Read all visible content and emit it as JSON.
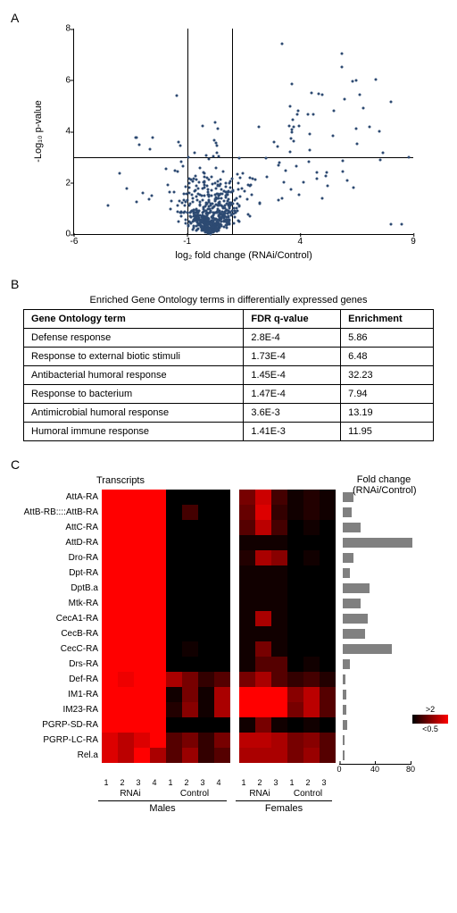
{
  "panelA": {
    "label": "A",
    "ylabel": "-Log₁₀ p-value",
    "xlabel": "log₂ fold change (RNAi/Control)",
    "xlim": [
      -6,
      9
    ],
    "ylim": [
      0,
      8
    ],
    "xticks": [
      -6,
      -1,
      4,
      9
    ],
    "yticks": [
      0,
      2,
      4,
      6,
      8
    ],
    "vlines": [
      -1,
      1
    ],
    "hline": 3,
    "point_color": "#2d4a72"
  },
  "panelB": {
    "label": "B",
    "title": "Enriched Gene Ontology terms in differentially expressed genes",
    "columns": [
      "Gene Ontology  term",
      "FDR q-value",
      "Enrichment"
    ],
    "rows": [
      [
        "Defense response",
        "2.8E-4",
        "5.86"
      ],
      [
        "Response to external biotic stimuli",
        "1.73E-4",
        "6.48"
      ],
      [
        "Antibacterial humoral response",
        "1.45E-4",
        "32.23"
      ],
      [
        "Response to bacterium",
        "1.47E-4",
        "7.94"
      ],
      [
        "Antimicrobial humoral response",
        "3.6E-3",
        "13.19"
      ],
      [
        "Humoral immune response",
        "1.41E-3",
        "11.95"
      ]
    ]
  },
  "panelC": {
    "label": "C",
    "header_left": "Transcripts",
    "header_right": "Fold change\n(RNAi/Control)",
    "colormap_high": ">2",
    "colormap_low": "<0.5",
    "color_low": "#000000",
    "color_high": "#ff0000",
    "male_rnai_n": 4,
    "male_ctrl_n": 4,
    "female_rnai_n": 3,
    "female_ctrl_n": 3,
    "group_labels": [
      "RNAi",
      "Control",
      "RNAi",
      "Control"
    ],
    "sex_labels": [
      "Males",
      "Females"
    ],
    "bar_ticks": [
      0,
      40,
      80
    ],
    "bar_max": 80,
    "rows": [
      {
        "label": "AttA-RA",
        "m_rnai": [
          2,
          2,
          2,
          2
        ],
        "m_ctrl": [
          0.5,
          0.5,
          0.5,
          0.5
        ],
        "f_rnai": [
          1.2,
          1.7,
          0.9
        ],
        "f_ctrl": [
          0.6,
          0.7,
          0.6
        ],
        "fc": 12
      },
      {
        "label": "AttB-RB::::AttB-RA",
        "m_rnai": [
          2,
          2,
          2,
          2
        ],
        "m_ctrl": [
          0.5,
          0.9,
          0.5,
          0.5
        ],
        "f_rnai": [
          1.1,
          1.8,
          0.8
        ],
        "f_ctrl": [
          0.6,
          0.7,
          0.6
        ],
        "fc": 10
      },
      {
        "label": "AttC-RA",
        "m_rnai": [
          2,
          2,
          2,
          2
        ],
        "m_ctrl": [
          0.5,
          0.5,
          0.5,
          0.5
        ],
        "f_rnai": [
          1.0,
          1.6,
          0.9
        ],
        "f_ctrl": [
          0.5,
          0.6,
          0.5
        ],
        "fc": 20
      },
      {
        "label": "AttD-RA",
        "m_rnai": [
          2,
          2,
          2,
          2
        ],
        "m_ctrl": [
          0.5,
          0.5,
          0.5,
          0.5
        ],
        "f_rnai": [
          0.6,
          0.6,
          0.6
        ],
        "f_ctrl": [
          0.5,
          0.5,
          0.5
        ],
        "fc": 78
      },
      {
        "label": "Dro-RA",
        "m_rnai": [
          2,
          2,
          2,
          2
        ],
        "m_ctrl": [
          0.5,
          0.5,
          0.5,
          0.5
        ],
        "f_rnai": [
          0.7,
          1.5,
          1.3
        ],
        "f_ctrl": [
          0.5,
          0.6,
          0.5
        ],
        "fc": 12
      },
      {
        "label": "Dpt-RA",
        "m_rnai": [
          2,
          2,
          2,
          2
        ],
        "m_ctrl": [
          0.5,
          0.5,
          0.5,
          0.5
        ],
        "f_rnai": [
          0.6,
          0.6,
          0.6
        ],
        "f_ctrl": [
          0.5,
          0.5,
          0.5
        ],
        "fc": 8
      },
      {
        "label": "DptB.a",
        "m_rnai": [
          2,
          2,
          2,
          2
        ],
        "m_ctrl": [
          0.5,
          0.5,
          0.5,
          0.5
        ],
        "f_rnai": [
          0.6,
          0.6,
          0.6
        ],
        "f_ctrl": [
          0.5,
          0.5,
          0.5
        ],
        "fc": 30
      },
      {
        "label": "Mtk-RA",
        "m_rnai": [
          2,
          2,
          2,
          2
        ],
        "m_ctrl": [
          0.5,
          0.5,
          0.5,
          0.5
        ],
        "f_rnai": [
          0.6,
          0.6,
          0.6
        ],
        "f_ctrl": [
          0.5,
          0.5,
          0.5
        ],
        "fc": 20
      },
      {
        "label": "CecA1-RA",
        "m_rnai": [
          2,
          2,
          2,
          2
        ],
        "m_ctrl": [
          0.5,
          0.5,
          0.5,
          0.5
        ],
        "f_rnai": [
          0.6,
          1.5,
          0.6
        ],
        "f_ctrl": [
          0.5,
          0.5,
          0.5
        ],
        "fc": 28
      },
      {
        "label": "CecB-RA",
        "m_rnai": [
          2,
          2,
          2,
          2
        ],
        "m_ctrl": [
          0.5,
          0.5,
          0.5,
          0.5
        ],
        "f_rnai": [
          0.6,
          0.6,
          0.6
        ],
        "f_ctrl": [
          0.5,
          0.5,
          0.5
        ],
        "fc": 25
      },
      {
        "label": "CecC-RA",
        "m_rnai": [
          2,
          2,
          2,
          2
        ],
        "m_ctrl": [
          0.5,
          0.6,
          0.5,
          0.5
        ],
        "f_rnai": [
          0.6,
          1.2,
          0.6
        ],
        "f_ctrl": [
          0.5,
          0.5,
          0.5
        ],
        "fc": 55
      },
      {
        "label": "Drs-RA",
        "m_rnai": [
          2,
          2,
          2,
          2
        ],
        "m_ctrl": [
          0.5,
          0.5,
          0.5,
          0.5
        ],
        "f_rnai": [
          0.6,
          1.0,
          1.0
        ],
        "f_ctrl": [
          0.5,
          0.6,
          0.5
        ],
        "fc": 8
      },
      {
        "label": "Def-RA",
        "m_rnai": [
          2,
          1.9,
          2,
          2
        ],
        "m_ctrl": [
          1.5,
          1.2,
          0.8,
          1.0
        ],
        "f_rnai": [
          1.2,
          1.5,
          1.0
        ],
        "f_ctrl": [
          0.8,
          0.9,
          0.7
        ],
        "fc": 3
      },
      {
        "label": "IM1-RA",
        "m_rnai": [
          2,
          2,
          2,
          2
        ],
        "m_ctrl": [
          0.6,
          1.2,
          0.6,
          1.5
        ],
        "f_rnai": [
          2,
          2,
          2
        ],
        "f_ctrl": [
          1.3,
          1.6,
          1.0
        ],
        "fc": 4
      },
      {
        "label": "IM23-RA",
        "m_rnai": [
          2,
          2,
          2,
          2
        ],
        "m_ctrl": [
          0.7,
          1.3,
          0.6,
          1.5
        ],
        "f_rnai": [
          2,
          2,
          2
        ],
        "f_ctrl": [
          1.2,
          1.6,
          1.0
        ],
        "fc": 4
      },
      {
        "label": "PGRP-SD-RA",
        "m_rnai": [
          2,
          2,
          2,
          2
        ],
        "m_ctrl": [
          0.5,
          0.5,
          0.5,
          0.5
        ],
        "f_rnai": [
          0.6,
          1.2,
          0.6
        ],
        "f_ctrl": [
          0.5,
          0.6,
          0.5
        ],
        "fc": 5
      },
      {
        "label": "PGRP-LC-RA",
        "m_rnai": [
          1.8,
          1.6,
          1.8,
          2
        ],
        "m_ctrl": [
          1.0,
          1.2,
          0.8,
          1.2
        ],
        "f_rnai": [
          1.6,
          1.6,
          1.5
        ],
        "f_ctrl": [
          1.2,
          1.3,
          1.0
        ],
        "fc": 2
      },
      {
        "label": "Rel.a",
        "m_rnai": [
          1.8,
          1.6,
          2,
          1.5
        ],
        "m_ctrl": [
          1.0,
          1.4,
          0.8,
          1.0
        ],
        "f_rnai": [
          1.5,
          1.5,
          1.5
        ],
        "f_ctrl": [
          1.2,
          1.4,
          1.0
        ],
        "fc": 2
      }
    ]
  }
}
